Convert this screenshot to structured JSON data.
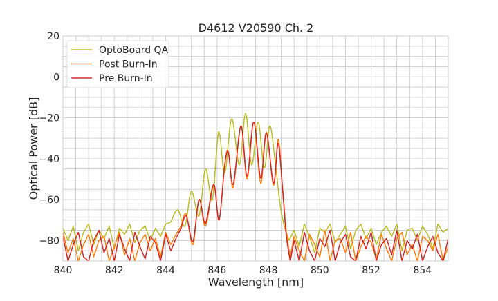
{
  "chart_data": {
    "type": "line",
    "title": "D4612 V20590 Ch. 2",
    "xlabel": "Wavelength [nm]",
    "ylabel": "Optical Power [dB]",
    "xlim": [
      840,
      855
    ],
    "ylim": [
      -90,
      20
    ],
    "xticks": [
      840,
      842,
      844,
      846,
      848,
      850,
      852,
      854
    ],
    "yticks": [
      -80,
      -60,
      -40,
      -20,
      0,
      20
    ],
    "xtick_labels": [
      "840",
      "842",
      "844",
      "846",
      "848",
      "850",
      "852",
      "854"
    ],
    "ytick_labels": [
      "−80",
      "−60",
      "−40",
      "−20",
      "0",
      "20"
    ],
    "grid": true,
    "grid_minor_x": 0.5,
    "grid_minor_y": 5,
    "legend_position": "top-left",
    "series": [
      {
        "name": "OptoBoard QA",
        "color": "#bcbd22",
        "left_noise_start": 840,
        "noise_step": 0.2,
        "left_noise": [
          -74,
          -80,
          -73,
          -85,
          -76,
          -72,
          -82,
          -75,
          -79,
          -73,
          -84,
          -74,
          -77,
          -72,
          -81,
          -75,
          -73,
          -80,
          -74,
          -78,
          -72
        ],
        "points": [
          [
            844.2,
            -71
          ],
          [
            844.47,
            -65
          ],
          [
            844.75,
            -73
          ],
          [
            845.0,
            -56
          ],
          [
            845.3,
            -68
          ],
          [
            845.55,
            -45
          ],
          [
            845.82,
            -60
          ],
          [
            846.06,
            -27
          ],
          [
            846.3,
            -47
          ],
          [
            846.57,
            -20.5
          ],
          [
            846.87,
            -43
          ],
          [
            847.11,
            -17.8
          ],
          [
            847.35,
            -43
          ],
          [
            847.6,
            -22
          ],
          [
            847.84,
            -44.5
          ],
          [
            848.05,
            -24
          ],
          [
            848.25,
            -40
          ],
          [
            848.45,
            -62
          ],
          [
            848.6,
            -72
          ],
          [
            848.8,
            -80
          ]
        ],
        "right_noise_start": 849,
        "right_noise": [
          -75,
          -83,
          -72,
          -78,
          -86,
          -74,
          -76,
          -72,
          -81,
          -77,
          -73,
          -84,
          -75,
          -72,
          -79,
          -74,
          -82,
          -76,
          -73,
          -78,
          -72,
          -85,
          -75,
          -74,
          -80,
          -73,
          -77,
          -84,
          -72,
          -76,
          -74
        ]
      },
      {
        "name": "Post Burn-In",
        "color": "#ff7f0e",
        "left_noise_start": 840,
        "noise_step": 0.2,
        "left_noise": [
          -76,
          -86,
          -79,
          -90,
          -82,
          -77,
          -88,
          -80,
          -78,
          -90,
          -83,
          -76,
          -87,
          -79,
          -90,
          -81,
          -77,
          -85,
          -79,
          -88,
          -76,
          -82,
          -77
        ],
        "points": [
          [
            844.6,
            -73
          ],
          [
            844.8,
            -67
          ],
          [
            845.06,
            -82
          ],
          [
            845.3,
            -60
          ],
          [
            845.55,
            -73
          ],
          [
            845.87,
            -53
          ],
          [
            846.08,
            -70
          ],
          [
            846.3,
            -43
          ],
          [
            846.44,
            -36.5
          ],
          [
            846.63,
            -54
          ],
          [
            846.93,
            -24
          ],
          [
            847.17,
            -50
          ],
          [
            847.43,
            -22
          ],
          [
            847.7,
            -52
          ],
          [
            847.92,
            -27
          ],
          [
            848.2,
            -53
          ],
          [
            848.38,
            -30.5
          ],
          [
            848.55,
            -54
          ],
          [
            848.7,
            -76
          ],
          [
            848.85,
            -88
          ]
        ],
        "right_noise_start": 849,
        "right_noise": [
          -78,
          -85,
          -90,
          -77,
          -82,
          -88,
          -75,
          -90,
          -80,
          -79,
          -86,
          -76,
          -90,
          -83,
          -78,
          -81,
          -89,
          -77,
          -84,
          -90,
          -79,
          -76,
          -87,
          -82,
          -90,
          -78,
          -80,
          -85,
          -77,
          -90,
          -83
        ]
      },
      {
        "name": "Pre Burn-In",
        "color": "#d62728",
        "left_noise_start": 840,
        "noise_step": 0.2,
        "left_noise": [
          -78,
          -90,
          -82,
          -76,
          -88,
          -90,
          -80,
          -75,
          -86,
          -79,
          -90,
          -77,
          -84,
          -90,
          -76,
          -83,
          -89,
          -78,
          -81,
          -90,
          -77,
          -85,
          -79
        ],
        "points": [
          [
            844.6,
            -74
          ],
          [
            844.8,
            -68
          ],
          [
            845.06,
            -80.5
          ],
          [
            845.3,
            -60
          ],
          [
            845.55,
            -71.5
          ],
          [
            845.87,
            -52.5
          ],
          [
            846.08,
            -70
          ],
          [
            846.3,
            -43
          ],
          [
            846.44,
            -37
          ],
          [
            846.63,
            -52.5
          ],
          [
            846.93,
            -24
          ],
          [
            847.17,
            -48.5
          ],
          [
            847.43,
            -22
          ],
          [
            847.7,
            -49.5
          ],
          [
            847.92,
            -27.5
          ],
          [
            848.2,
            -52
          ],
          [
            848.38,
            -32.5
          ],
          [
            848.55,
            -55
          ],
          [
            848.7,
            -78
          ],
          [
            848.85,
            -90
          ]
        ],
        "right_noise_start": 849,
        "right_noise": [
          -80,
          -90,
          -76,
          -85,
          -90,
          -79,
          -83,
          -75,
          -90,
          -81,
          -77,
          -88,
          -90,
          -78,
          -84,
          -76,
          -90,
          -82,
          -79,
          -87,
          -75,
          -90,
          -80,
          -84,
          -77,
          -90,
          -83,
          -78,
          -86,
          -90,
          -79
        ]
      }
    ]
  }
}
